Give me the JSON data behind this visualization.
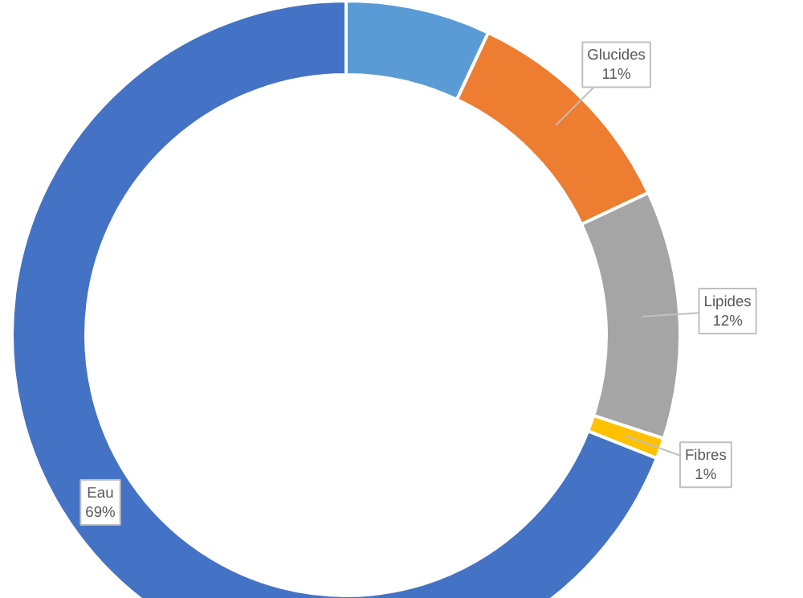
{
  "chart_data": {
    "type": "donut",
    "categories": [
      null,
      "Glucides",
      "Lipides",
      "Fibres",
      "Eau"
    ],
    "values": [
      7,
      11,
      12,
      1,
      69
    ],
    "value_labels": [
      null,
      "11%",
      "12%",
      "1%",
      "69%"
    ],
    "colors": [
      "#5b9bd5",
      "#ed7d31",
      "#a5a5a5",
      "#ffc000",
      "#4472c4"
    ]
  }
}
